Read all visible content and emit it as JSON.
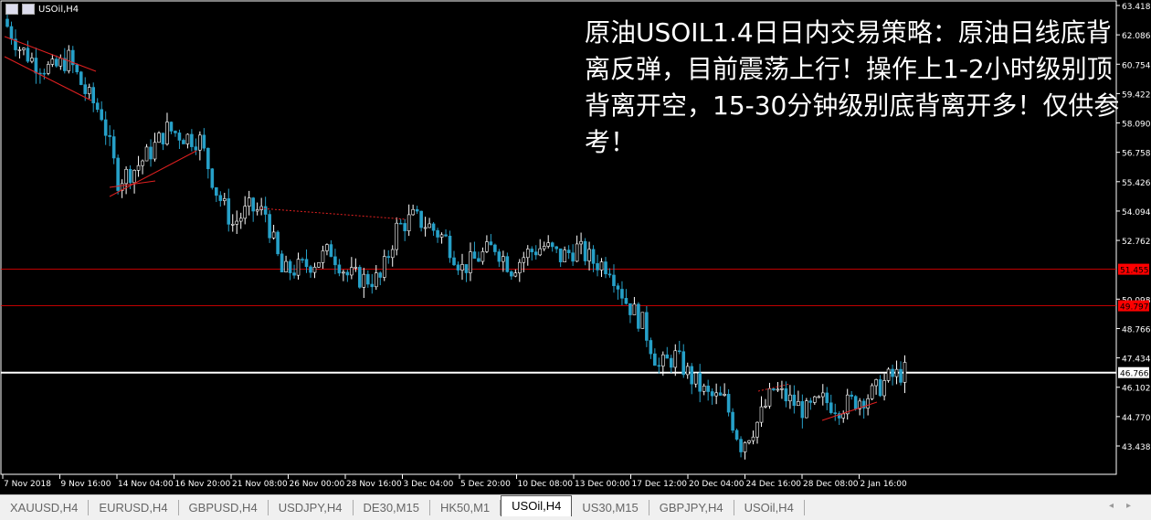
{
  "chart_header": {
    "symbol": "USOil,H4"
  },
  "annotation": "原油USOIL1.4日日内交易策略：原油日线底背离反弹，目前震荡上行！操作上1-2小时级别顶背离开空，15-30分钟级别底背离开多！仅供参考！",
  "chart_data": {
    "type": "candlestick",
    "y_ticks": [
      "63.418",
      "62.086",
      "60.754",
      "59.422",
      "58.090",
      "56.758",
      "55.426",
      "54.094",
      "52.762",
      "50.098",
      "48.766",
      "47.434",
      "46.102",
      "44.770",
      "43.438"
    ],
    "x_ticks": [
      "7 Nov 2018",
      "9 Nov 16:00",
      "14 Nov 04:00",
      "16 Nov 20:00",
      "21 Nov 08:00",
      "26 Nov 00:00",
      "28 Nov 16:00",
      "3 Dec 04:00",
      "5 Dec 20:00",
      "10 Dec 08:00",
      "13 Dec 00:00",
      "17 Dec 12:00",
      "20 Dec 04:00",
      "24 Dec 16:00",
      "28 Dec 08:00",
      "2 Jan 16:00"
    ],
    "levels": [
      {
        "label": "51.455",
        "color": "#ff0000"
      },
      {
        "label": "49.797",
        "color": "#ff0000"
      },
      {
        "label": "46.766",
        "color": "#ffffff"
      }
    ],
    "closes": [
      62.8,
      61.5,
      60.8,
      60.5,
      61,
      59.5,
      58.5,
      55.5,
      56,
      56.8,
      57.8,
      57.5,
      57.3,
      55,
      53.5,
      54.2,
      54,
      51.3,
      51.5,
      51.8,
      52.3,
      51.2,
      51,
      51,
      53.3,
      53.8,
      53.4,
      52.8,
      51.5,
      52,
      52.5,
      51.5,
      52.2,
      52.5,
      52,
      52.4,
      51.8,
      51.6,
      50,
      49,
      47,
      47.5,
      46.5,
      45.7,
      45.5,
      43.5,
      44.5,
      46,
      45.5,
      45,
      45.5,
      45.2,
      45.5,
      45.8,
      46.5,
      46.8
    ],
    "ylim": [
      43.438,
      63.418
    ],
    "candle_up_color": "#ffffff",
    "candle_down_color": "#26a0c8"
  },
  "tabs": [
    "XAUUSD,H4",
    "EURUSD,H4",
    "GBPUSD,H4",
    "USDJPY,H4",
    "DE30,M15",
    "HK50,M1",
    "USOil,H4",
    "US30,M15",
    "GBPJPY,H4",
    "USOil,H4"
  ],
  "active_tab": 6
}
